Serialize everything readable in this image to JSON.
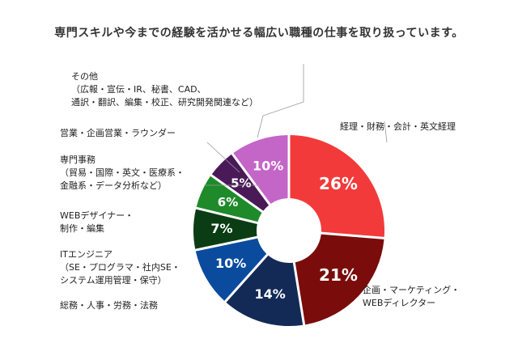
{
  "title": "専門スキルや今までの経験を活かせる幅広い職種の仕事を取り扱っています。",
  "chart_data": {
    "type": "pie",
    "variant": "donut",
    "slices": [
      {
        "label_lines": [
          "経理・財務・会計・英文経理"
        ],
        "value": 26,
        "value_label": "26%",
        "color": "#f23a3a"
      },
      {
        "label_lines": [
          "企画・マーケティング・",
          "WEBディレクター"
        ],
        "value": 21,
        "value_label": "21%",
        "color": "#7a0c0c"
      },
      {
        "label_lines": [
          "総務・人事・労務・法務"
        ],
        "value": 14,
        "value_label": "14%",
        "color": "#132a57"
      },
      {
        "label_lines": [
          "ITエンジニア",
          "（SE・プログラマ・社内SE・",
          "システム運用管理・保守）"
        ],
        "value": 10,
        "value_label": "10%",
        "color": "#0a4b9e"
      },
      {
        "label_lines": [
          "WEBデザイナー・",
          "制作・編集"
        ],
        "value": 7,
        "value_label": "7%",
        "color": "#0b3d14"
      },
      {
        "label_lines": [
          "専門事務",
          "（貿易・国際・英文・医療系・",
          "金融系・データ分析など）"
        ],
        "value": 6,
        "value_label": "6%",
        "color": "#1f8a2a"
      },
      {
        "label_lines": [
          "営業・企画営業・ラウンダー"
        ],
        "value": 5,
        "value_label": "5%",
        "color": "#4a1a58"
      },
      {
        "label_lines": [
          "その他",
          "（広報・宣伝・IR、秘書、CAD、",
          "通訳・翻訳、編集・校正、研究開発関連など）"
        ],
        "value": 10,
        "value_label": "10%",
        "color": "#c465c8"
      }
    ]
  }
}
